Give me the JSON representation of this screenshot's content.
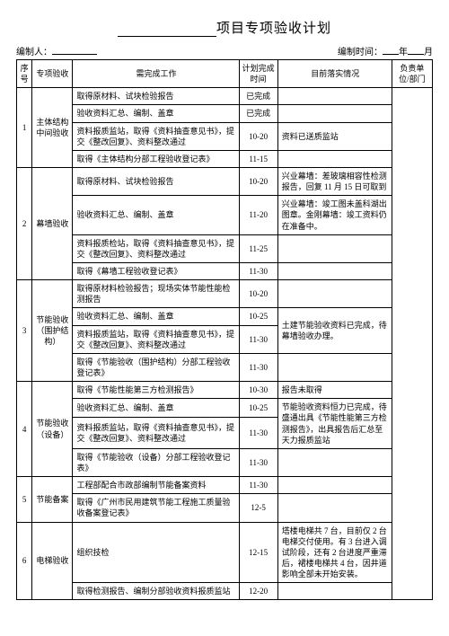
{
  "title_suffix": "项目专项验收计划",
  "meta": {
    "left_label": "编制人：",
    "right_label_prefix": "编制时间：",
    "year_char": "年",
    "month_char": "月"
  },
  "headers": {
    "idx": "序号",
    "category": "专项验收",
    "task": "需完成工作",
    "date": "计划完成时间",
    "status": "目前落实情况",
    "dept": "负责单位/部门"
  },
  "groups": [
    {
      "idx": "1",
      "category": "主体结构中间验收",
      "rows": [
        {
          "task": "取得原材料、试块检验报告",
          "date": "已完成",
          "status": ""
        },
        {
          "task": "验收资料汇总、编制、盖章",
          "date": "已完成",
          "status": ""
        },
        {
          "task": "资料报质监站，取得《资料抽查意见书》，提交《整改回复》、资料整改通过",
          "date": "10-20",
          "status": "资料已送质监站"
        },
        {
          "task": "取得《主体结构分部工程验收登记表》",
          "date": "11-15",
          "status": ""
        }
      ]
    },
    {
      "idx": "2",
      "category": "幕墙验收",
      "rows": [
        {
          "task": "取得原材料、试块检验报告",
          "date": "10-20",
          "status": "兴业幕墙：差玻璃相容性检测报告，回复 11 月 15 日可取到"
        },
        {
          "task": "验收资料汇总、编制、盖章",
          "date": "11-20",
          "status": "兴业幕墙：竣工图未盖科湖出图章。金刚幕墙：竣工资料仍在准备中。"
        },
        {
          "task": "资料报质检站，取得《资料抽查意见书》，提交《整改回复》、资料整改通过",
          "date": "11-25",
          "status": ""
        },
        {
          "task": "取得《幕墙工程验收登记表》",
          "date": "11-30",
          "status": ""
        }
      ]
    },
    {
      "idx": "3",
      "category": "节能验收（围护结构）",
      "rows": [
        {
          "task": "取得原材料检验报告；现场实体节能性能检测报告",
          "date": "10-20",
          "status": ""
        },
        {
          "task": "验收资料汇总、编制、盖章",
          "date": "10-25",
          "status": ""
        },
        {
          "task": "资料报质监站，取得《资料抽查意见书》，提交《整改回复》、资料整改通过",
          "date": "11-30",
          "status": "土建节能验收资料已完成，待幕墙验收办理。"
        },
        {
          "task": "取得《节能验收（围护结构）分部工程验收登记表》",
          "date": "11-30",
          "status": ""
        }
      ]
    },
    {
      "idx": "4",
      "category": "节能验收（设备）",
      "rows": [
        {
          "task": "取得《节能性能第三方检测报告》",
          "date": "10-30",
          "status": "报告未取得"
        },
        {
          "task": "验收资料汇总、编制、盖章",
          "date": "10-25",
          "status": ""
        },
        {
          "task": "资料报质监站，取得《资料抽查意见书》，提交《整改回复》、资料整改通过",
          "date": "11-30",
          "status": "节能验收资料恒力已完成，待盛通出具《节能性能第三方检测报告》，出具报告后汇总至天力报质监站"
        },
        {
          "task": "取得《节能验收（设备）分部工程验收登记表》",
          "date": "11-30",
          "status": ""
        }
      ]
    },
    {
      "idx": "5",
      "category": "节能备案",
      "rows": [
        {
          "task": "工程部配合市政部编制节能备案资料",
          "date": "11-30",
          "status": ""
        },
        {
          "task": "取得《广州市民用建筑节能工程施工质量验收备案登记表》",
          "date": "12-5",
          "status": ""
        }
      ]
    },
    {
      "idx": "6",
      "category": "电梯验收",
      "rows": [
        {
          "task": "组织技检",
          "date": "12-15",
          "status": "塔楼电梯共 7 台，目前仅 2 台电梯交付使用。有 3 台进入调试阶段，还有 2 台进度严重滞后，裙楼电梯共 4 台，因井道影响全部未开始安装。"
        },
        {
          "task": "取得检测报告、编制分部验收资料报质监站",
          "date": "12-20",
          "status": ""
        }
      ]
    }
  ],
  "status_merge": {
    "3": {
      "start": 1,
      "span": 2,
      "text": "土建节能验收资料已完成，待幕墙验收办理。"
    },
    "4": {
      "start": 1,
      "span": 2,
      "text": "节能验收资料恒力已完成，待盛通出具《节能性能第三方检测报告》，出具报告后汇总至天力报质监站"
    }
  }
}
